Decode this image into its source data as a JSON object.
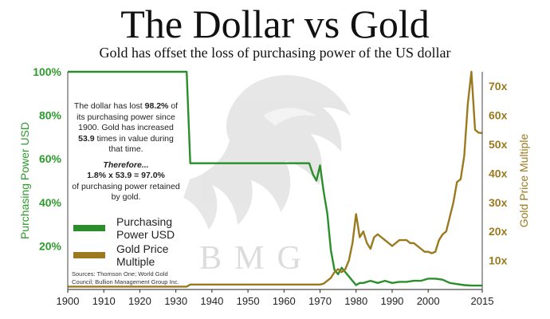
{
  "header": {
    "title": "The Dollar vs Gold",
    "subtitle": "Gold has offset the loss of purchasing power of the US dollar"
  },
  "note": {
    "line1_pre": "The dollar has lost ",
    "line1_bold": "98.2%",
    "line2": "of its purchasing power since 1900.  Gold has increased ",
    "line2_bold": "53.9",
    "line3": " times in value during that time.",
    "therefore": "Therefore...",
    "formula": "1.8% x 53.9 = 97.0%",
    "line4": "of purchasing power retained by gold."
  },
  "sources": "Sources: Thomson One; World Gold Council; Bullion Management Group Inc.",
  "watermark": {
    "text": "BMG"
  },
  "colors": {
    "usd": "#2a8f2a",
    "gold": "#9b7a1f",
    "usd_text": "#2e9a2e"
  },
  "chart_data": {
    "type": "line",
    "title": "The Dollar vs Gold",
    "subtitle": "Gold has offset the loss of purchasing power of the US dollar",
    "xlabel": "",
    "x_ticks": [
      "1900",
      "1910",
      "1920",
      "1930",
      "1940",
      "1950",
      "1960",
      "1970",
      "1980",
      "1990",
      "2000",
      "2015"
    ],
    "xlim": [
      1900,
      2015
    ],
    "y_left": {
      "label": "Purchasing Power USD",
      "ticks": [
        "20%",
        "40%",
        "60%",
        "80%",
        "100%"
      ],
      "range": [
        0,
        100
      ]
    },
    "y_right": {
      "label": "Gold Price Multiple",
      "ticks": [
        "10x",
        "20x",
        "30x",
        "40x",
        "50x",
        "60x",
        "70x"
      ],
      "range": [
        0,
        75
      ]
    },
    "legend": {
      "placement": "bottom-left",
      "entries": [
        "Purchasing Power USD",
        "Gold Price Multiple"
      ]
    },
    "series": [
      {
        "name": "Purchasing Power USD",
        "axis": "left",
        "color": "#2a8f2a",
        "x": [
          1900,
          1933,
          1934,
          1967,
          1968,
          1969,
          1970,
          1971,
          1972,
          1973,
          1974,
          1975,
          1976,
          1977,
          1978,
          1979,
          1980,
          1981,
          1982,
          1984,
          1986,
          1988,
          1990,
          1992,
          1994,
          1996,
          1998,
          2000,
          2002,
          2004,
          2006,
          2008,
          2010,
          2012,
          2015
        ],
        "y": [
          100,
          100,
          58,
          58,
          53,
          50,
          57,
          45,
          35,
          18,
          9,
          7,
          10,
          8,
          6,
          4,
          2,
          3,
          3,
          4,
          3,
          4,
          3,
          3.5,
          3.5,
          4,
          4,
          5,
          5,
          4.5,
          3,
          2.5,
          2,
          1.8,
          1.8
        ]
      },
      {
        "name": "Gold Price Multiple",
        "axis": "right",
        "color": "#9b7a1f",
        "x": [
          1900,
          1933,
          1934,
          1970,
          1971,
          1972,
          1973,
          1974,
          1975,
          1976,
          1977,
          1978,
          1979,
          1980,
          1981,
          1982,
          1983,
          1984,
          1985,
          1986,
          1987,
          1988,
          1990,
          1992,
          1993,
          1994,
          1995,
          1996,
          1998,
          1999,
          2000,
          2001,
          2002,
          2003,
          2004,
          2005,
          2006,
          2007,
          2008,
          2009,
          2010,
          2011,
          2012,
          2013,
          2014,
          2015
        ],
        "y": [
          1,
          1,
          1.7,
          1.7,
          2,
          3,
          4,
          6,
          7,
          6,
          7,
          10,
          16,
          26,
          18,
          20,
          16,
          14,
          18,
          19,
          18,
          17,
          15,
          17,
          17,
          17,
          16,
          16,
          14,
          13,
          13,
          12.5,
          13,
          17,
          19,
          20,
          25,
          30,
          37,
          38,
          46,
          64,
          75,
          55,
          54,
          53.9
        ]
      }
    ]
  }
}
